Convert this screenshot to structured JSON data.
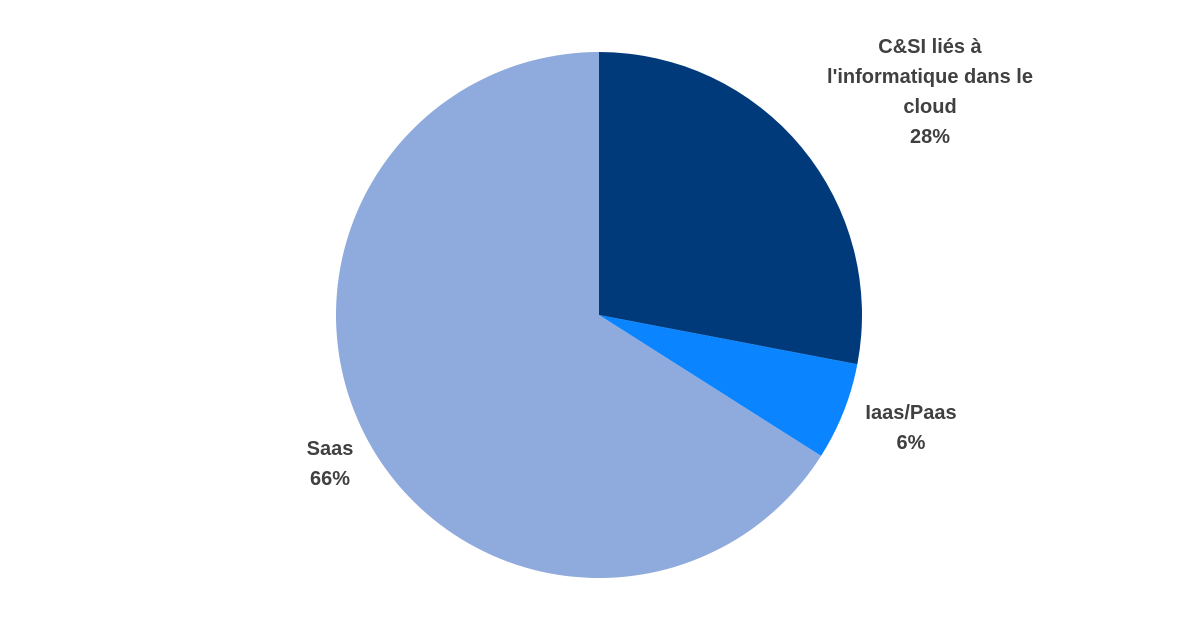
{
  "chart_data": {
    "type": "pie",
    "slices": [
      {
        "label_lines": [
          "C&SI liés à",
          "l'informatique dans le",
          "cloud"
        ],
        "percent_label": "28%",
        "value": 28,
        "color": "#003A7A"
      },
      {
        "label_lines": [
          "Iaas/Paas"
        ],
        "percent_label": "6%",
        "value": 6,
        "color": "#0A84FF"
      },
      {
        "label_lines": [
          "Saas"
        ],
        "percent_label": "66%",
        "value": 66,
        "color": "#8FAADC"
      }
    ]
  }
}
